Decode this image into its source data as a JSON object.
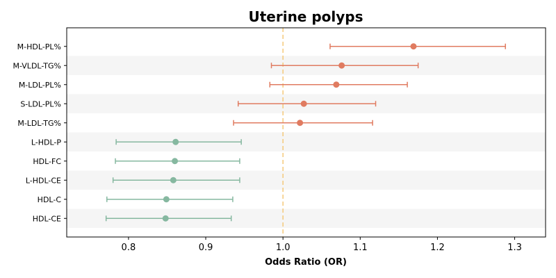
{
  "chart_data": {
    "type": "scatter",
    "title": "Uterine polyps",
    "xlabel": "Odds Ratio (OR)",
    "ylabel": "",
    "xlim": [
      0.72,
      1.34
    ],
    "xticks": [
      0.8,
      0.9,
      1.0,
      1.1,
      1.2,
      1.3
    ],
    "xtick_labels": [
      "0.8",
      "0.9",
      "1.0",
      "1.1",
      "1.2",
      "1.3"
    ],
    "reference_line": {
      "x": 1.0,
      "style": "dashed",
      "color": "#f5c97a"
    },
    "alternating_row_shading": true,
    "grid": false,
    "colors": {
      "increased": "#e07b60",
      "decreased": "#86b8a0",
      "band": "#f5f5f5"
    },
    "categories": [
      "M-HDL-PL%",
      "M-VLDL-TG%",
      "M-LDL-PL%",
      "S-LDL-PL%",
      "M-LDL-TG%",
      "L-HDL-P",
      "HDL-FC",
      "L-HDL-CE",
      "HDL-C",
      "HDL-CE"
    ],
    "points": [
      {
        "label": "M-HDL-PL%",
        "or": 1.169,
        "lower": 1.061,
        "upper": 1.288,
        "group": "increased"
      },
      {
        "label": "M-VLDL-TG%",
        "or": 1.076,
        "lower": 0.985,
        "upper": 1.175,
        "group": "increased"
      },
      {
        "label": "M-LDL-PL%",
        "or": 1.069,
        "lower": 0.983,
        "upper": 1.161,
        "group": "increased"
      },
      {
        "label": "S-LDL-PL%",
        "or": 1.027,
        "lower": 0.942,
        "upper": 1.12,
        "group": "increased"
      },
      {
        "label": "M-LDL-TG%",
        "or": 1.022,
        "lower": 0.936,
        "upper": 1.116,
        "group": "increased"
      },
      {
        "label": "L-HDL-P",
        "or": 0.861,
        "lower": 0.784,
        "upper": 0.946,
        "group": "decreased"
      },
      {
        "label": "HDL-FC",
        "or": 0.86,
        "lower": 0.783,
        "upper": 0.944,
        "group": "decreased"
      },
      {
        "label": "L-HDL-CE",
        "or": 0.858,
        "lower": 0.78,
        "upper": 0.944,
        "group": "decreased"
      },
      {
        "label": "HDL-C",
        "or": 0.849,
        "lower": 0.772,
        "upper": 0.935,
        "group": "decreased"
      },
      {
        "label": "HDL-CE",
        "or": 0.848,
        "lower": 0.771,
        "upper": 0.933,
        "group": "decreased"
      }
    ]
  }
}
